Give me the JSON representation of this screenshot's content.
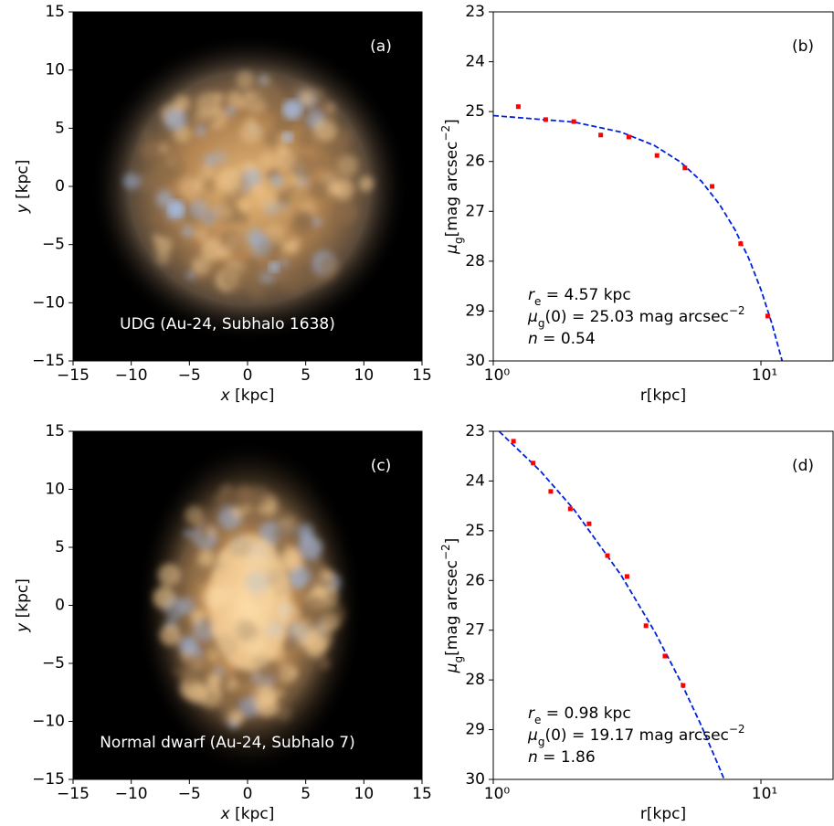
{
  "chart_data": [
    {
      "type": "image",
      "xlim": [
        -15,
        15
      ],
      "ylim": [
        -15,
        15
      ],
      "xticks": [
        {
          "value": -15,
          "label": "−15"
        },
        {
          "value": -10,
          "label": "−10"
        },
        {
          "value": -5,
          "label": "−5"
        },
        0,
        5,
        10,
        15
      ],
      "yticks": [
        {
          "value": -15,
          "label": "−15"
        },
        {
          "value": -10,
          "label": "−10"
        },
        {
          "value": -5,
          "label": "−5"
        },
        0,
        5,
        10,
        15
      ],
      "xlabel": [
        {
          "text": "x",
          "shift": "italic"
        },
        {
          "text": " [kpc]"
        }
      ],
      "ylabel": [
        {
          "text": "y",
          "shift": "italic"
        },
        {
          "text": " [kpc]"
        }
      ],
      "panel_label": "(a)",
      "caption": "UDG (Au-24, Subhalo 1638)",
      "shape": "round"
    },
    {
      "type": "profile",
      "xscale": "log",
      "xlim": [
        1,
        18.6
      ],
      "ylim": [
        30,
        23
      ],
      "xticks": [
        {
          "value": 1,
          "label": "10⁰"
        },
        {
          "value": 10,
          "label": "10¹"
        }
      ],
      "yticks": [
        23,
        24,
        25,
        26,
        27,
        28,
        29,
        30
      ],
      "xlabel": [
        {
          "text": "r[kpc]"
        }
      ],
      "ylabel": [
        {
          "text": "μ",
          "shift": "italic"
        },
        {
          "text": "g",
          "shift": "sub"
        },
        {
          "text": "[mag arcsec"
        },
        {
          "text": "−2",
          "shift": "sup"
        },
        {
          "text": "]"
        }
      ],
      "panel_label": "(b)",
      "annotation": [
        [
          {
            "text": "r",
            "shift": "italic"
          },
          {
            "text": "e",
            "shift": "sub"
          },
          {
            "text": " = 4.57 kpc"
          }
        ],
        [
          {
            "text": "μ",
            "shift": "italic"
          },
          {
            "text": "g",
            "shift": "sub"
          },
          {
            "text": "(0) = 25.03 mag arcsec"
          },
          {
            "text": "−2",
            "shift": "sup"
          }
        ],
        [
          {
            "text": "n",
            "shift": "italic"
          },
          {
            "text": " = 0.54"
          }
        ]
      ],
      "points": {
        "color": "#ff0000",
        "x": [
          1.24,
          1.57,
          2.0,
          2.52,
          3.21,
          4.09,
          5.2,
          6.57,
          8.4,
          10.6
        ],
        "values": [
          24.9,
          25.16,
          25.2,
          25.47,
          25.51,
          25.88,
          26.13,
          26.5,
          27.65,
          29.1
        ]
      },
      "fit": {
        "color": "#0022dd",
        "dashed": true,
        "x": [
          1,
          2,
          3,
          4,
          5,
          6,
          7,
          8,
          9,
          10,
          11,
          12
        ],
        "values": [
          25.08,
          25.21,
          25.41,
          25.68,
          26.01,
          26.4,
          26.86,
          27.37,
          27.94,
          28.57,
          29.26,
          30.0
        ]
      }
    },
    {
      "type": "image",
      "xlim": [
        -15,
        15
      ],
      "ylim": [
        -15,
        15
      ],
      "xticks": [
        {
          "value": -15,
          "label": "−15"
        },
        {
          "value": -10,
          "label": "−10"
        },
        {
          "value": -5,
          "label": "−5"
        },
        0,
        5,
        10,
        15
      ],
      "yticks": [
        {
          "value": -15,
          "label": "−15"
        },
        {
          "value": -10,
          "label": "−10"
        },
        {
          "value": -5,
          "label": "−5"
        },
        0,
        5,
        10,
        15
      ],
      "xlabel": [
        {
          "text": "x",
          "shift": "italic"
        },
        {
          "text": " [kpc]"
        }
      ],
      "ylabel": [
        {
          "text": "y",
          "shift": "italic"
        },
        {
          "text": " [kpc]"
        }
      ],
      "panel_label": "(c)",
      "caption": "Normal dwarf (Au-24, Subhalo 7)",
      "shape": "elongated"
    },
    {
      "type": "profile",
      "xscale": "log",
      "xlim": [
        1,
        18.6
      ],
      "ylim": [
        30,
        23
      ],
      "xticks": [
        {
          "value": 1,
          "label": "10⁰"
        },
        {
          "value": 10,
          "label": "10¹"
        }
      ],
      "yticks": [
        23,
        24,
        25,
        26,
        27,
        28,
        29,
        30
      ],
      "xlabel": [
        {
          "text": "r[kpc]"
        }
      ],
      "ylabel": [
        {
          "text": "μ",
          "shift": "italic"
        },
        {
          "text": "g",
          "shift": "sub"
        },
        {
          "text": "[mag arcsec"
        },
        {
          "text": "−2",
          "shift": "sup"
        },
        {
          "text": "]"
        }
      ],
      "panel_label": "(d)",
      "annotation": [
        [
          {
            "text": "r",
            "shift": "italic"
          },
          {
            "text": "e",
            "shift": "sub"
          },
          {
            "text": " = 0.98 kpc"
          }
        ],
        [
          {
            "text": "μ",
            "shift": "italic"
          },
          {
            "text": "g",
            "shift": "sub"
          },
          {
            "text": "(0) = 19.17 mag arcsec"
          },
          {
            "text": "−2",
            "shift": "sup"
          }
        ],
        [
          {
            "text": "n",
            "shift": "italic"
          },
          {
            "text": " = 1.86"
          }
        ]
      ],
      "points": {
        "color": "#ff0000",
        "x": [
          1.19,
          1.41,
          1.64,
          1.94,
          2.28,
          2.67,
          3.16,
          3.72,
          4.38,
          5.12
        ],
        "values": [
          23.2,
          23.64,
          24.21,
          24.56,
          24.86,
          25.5,
          25.92,
          26.91,
          27.52,
          28.11
        ]
      },
      "fit": {
        "color": "#0022dd",
        "dashed": true,
        "x": [
          1,
          1.5,
          2,
          3,
          4,
          5,
          6,
          7,
          7.3
        ],
        "values": [
          22.89,
          23.8,
          24.57,
          25.89,
          27.02,
          28.02,
          28.93,
          29.77,
          30.01
        ]
      }
    }
  ]
}
